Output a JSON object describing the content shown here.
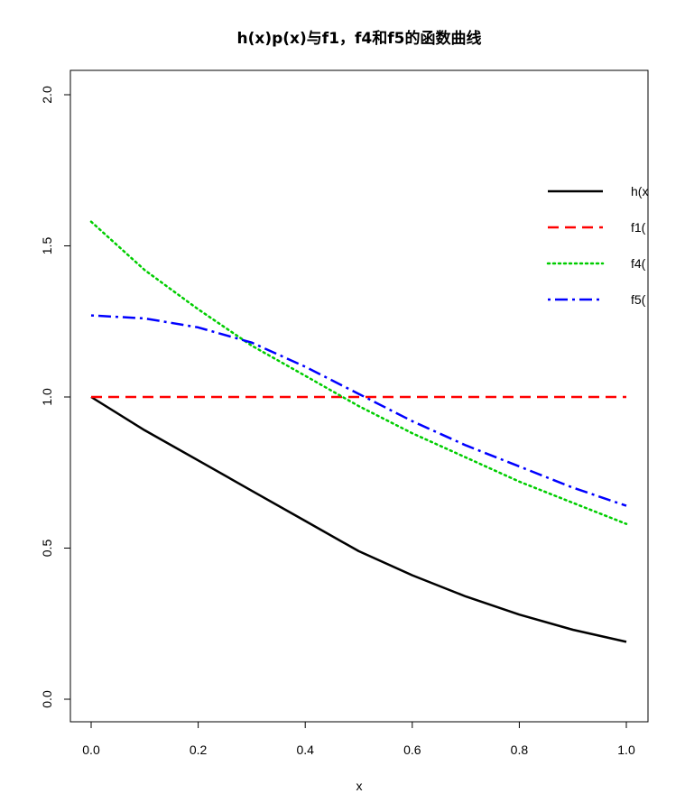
{
  "chart_data": {
    "type": "line",
    "title": "h(x)p(x)与f1，f4和f5的函数曲线",
    "xlabel": "x",
    "ylabel": "",
    "xlim": [
      0,
      1
    ],
    "ylim": [
      0,
      2
    ],
    "x_ticks": [
      "0.0",
      "0.2",
      "0.4",
      "0.6",
      "0.8",
      "1.0"
    ],
    "y_ticks": [
      "0.0",
      "0.5",
      "1.0",
      "1.5",
      "2.0"
    ],
    "legend_position": "right",
    "x": [
      0.0,
      0.1,
      0.2,
      0.3,
      0.4,
      0.5,
      0.6,
      0.7,
      0.8,
      0.9,
      1.0
    ],
    "series": [
      {
        "name": "h(x",
        "color": "#000000",
        "dash": "solid",
        "values": [
          1.0,
          0.89,
          0.79,
          0.69,
          0.59,
          0.49,
          0.41,
          0.34,
          0.28,
          0.23,
          0.19
        ]
      },
      {
        "name": "f1(",
        "color": "#FF0000",
        "dash": "dashed",
        "values": [
          1.0,
          1.0,
          1.0,
          1.0,
          1.0,
          1.0,
          1.0,
          1.0,
          1.0,
          1.0,
          1.0
        ]
      },
      {
        "name": "f4(",
        "color": "#00CD00",
        "dash": "dotted",
        "values": [
          1.58,
          1.42,
          1.29,
          1.17,
          1.07,
          0.97,
          0.88,
          0.8,
          0.72,
          0.65,
          0.58
        ]
      },
      {
        "name": "f5(",
        "color": "#0000FF",
        "dash": "dotdash",
        "values": [
          1.27,
          1.26,
          1.23,
          1.18,
          1.1,
          1.01,
          0.92,
          0.84,
          0.77,
          0.7,
          0.64
        ]
      }
    ]
  }
}
